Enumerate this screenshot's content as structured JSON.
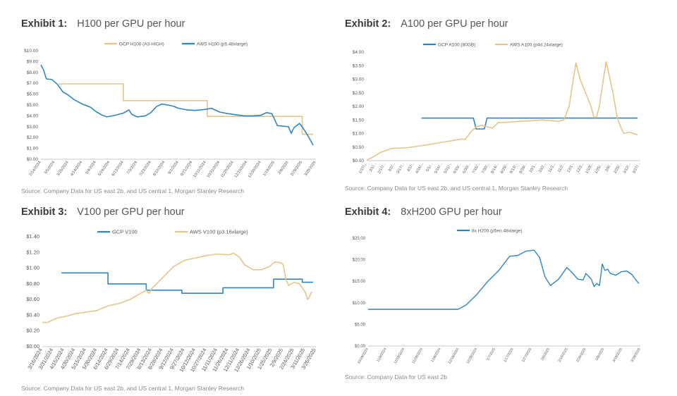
{
  "colors": {
    "blue": "#2E86C1",
    "gold": "#E3C68A",
    "axis": "#bbbbbb",
    "text": "#555555"
  },
  "exhibits": [
    {
      "id": "ex1",
      "number": "Exhibit 1:",
      "title": "H100 per GPU per hour",
      "source": "Source: Company Data for US east 2b, and US central 1, Morgan Stanley Research"
    },
    {
      "id": "ex2",
      "number": "Exhibit 2:",
      "title": "A100 per GPU per hour",
      "source": "Source: Company Data for US east 2b, and US central 1, Morgan Stanley Research"
    },
    {
      "id": "ex3",
      "number": "Exhibit 3:",
      "title": "V100 per GPU per hour",
      "source": "Source: Company Data for US east 2b, and US central 1, Morgan Stanley Research"
    },
    {
      "id": "ex4",
      "number": "Exhibit 4:",
      "title": "8xH200 GPU per hour",
      "source": "Source: Company Data for US east 2b"
    }
  ],
  "chart_data": [
    {
      "id": "ex1",
      "type": "line",
      "title": "H100 per GPU per hour",
      "legend_position": "top",
      "ylim": [
        0,
        10
      ],
      "yticks": [
        "$0.00",
        "$1.00",
        "$2.00",
        "$3.00",
        "$4.00",
        "$5.00",
        "$6.00",
        "$7.00",
        "$8.00",
        "$9.00",
        "$10.00"
      ],
      "yvalues": [
        0,
        1,
        2,
        3,
        4,
        5,
        6,
        7,
        8,
        9,
        10
      ],
      "xlabels": [
        "2/14/2024",
        "3/5/2024",
        "3/25/2024",
        "4/14/2024",
        "5/4/2024",
        "5/24/2024",
        "6/13/2024",
        "7/3/2024",
        "7/23/2024",
        "8/12/2024",
        "9/1/2024",
        "9/21/2024",
        "10/11/2024",
        "10/31/2024",
        "11/20/2024",
        "12/10/2024",
        "12/30/2024",
        "1/19/2025",
        "2/8/2025",
        "2/28/2025",
        "3/20/2025"
      ],
      "series": [
        {
          "name": "GCP H100 (A3-HIGH)",
          "color": "#E3C68A",
          "points": [
            [
              0.065,
              null
            ],
            [
              0.065,
              6.95
            ],
            [
              0.3,
              6.95
            ],
            [
              0.3,
              5.4
            ],
            [
              0.605,
              5.4
            ],
            [
              0.605,
              3.95
            ],
            [
              0.95,
              3.95
            ],
            [
              0.95,
              2.3
            ],
            [
              0.99,
              2.3
            ]
          ]
        },
        {
          "name": "AWS H100 (p5.48xlarge)",
          "color": "#2E86C1",
          "points": [
            [
              0.0,
              8.7
            ],
            [
              0.01,
              8.2
            ],
            [
              0.02,
              7.4
            ],
            [
              0.04,
              7.35
            ],
            [
              0.06,
              6.9
            ],
            [
              0.08,
              6.2
            ],
            [
              0.1,
              5.9
            ],
            [
              0.12,
              5.5
            ],
            [
              0.15,
              5.1
            ],
            [
              0.18,
              4.8
            ],
            [
              0.2,
              4.4
            ],
            [
              0.22,
              4.1
            ],
            [
              0.24,
              3.9
            ],
            [
              0.27,
              4.05
            ],
            [
              0.3,
              4.25
            ],
            [
              0.32,
              4.55
            ],
            [
              0.33,
              4.15
            ],
            [
              0.35,
              3.9
            ],
            [
              0.38,
              4.0
            ],
            [
              0.4,
              4.3
            ],
            [
              0.42,
              4.85
            ],
            [
              0.44,
              5.1
            ],
            [
              0.46,
              5.0
            ],
            [
              0.48,
              4.9
            ],
            [
              0.5,
              4.7
            ],
            [
              0.53,
              4.55
            ],
            [
              0.56,
              4.5
            ],
            [
              0.6,
              4.6
            ],
            [
              0.62,
              4.7
            ],
            [
              0.65,
              4.35
            ],
            [
              0.68,
              4.2
            ],
            [
              0.71,
              4.1
            ],
            [
              0.74,
              4.0
            ],
            [
              0.77,
              4.0
            ],
            [
              0.8,
              4.05
            ],
            [
              0.82,
              4.3
            ],
            [
              0.84,
              4.2
            ],
            [
              0.86,
              3.1
            ],
            [
              0.88,
              3.05
            ],
            [
              0.9,
              3.0
            ],
            [
              0.91,
              2.4
            ],
            [
              0.92,
              2.9
            ],
            [
              0.94,
              3.3
            ],
            [
              0.95,
              3.0
            ],
            [
              0.97,
              2.2
            ],
            [
              0.99,
              1.3
            ]
          ]
        }
      ]
    },
    {
      "id": "ex2",
      "type": "line",
      "title": "A100 per GPU per hour",
      "legend_position": "top",
      "ylim": [
        0,
        4
      ],
      "yticks": [
        "$0.00",
        "$0.50",
        "$1.00",
        "$1.50",
        "$2.00",
        "$2.50",
        "$3.00",
        "$3.50",
        "$4.00"
      ],
      "yvalues": [
        0,
        0.5,
        1,
        1.5,
        2,
        2.5,
        3,
        3.5,
        4
      ],
      "xlabels": [
        "1/17/...",
        "2/1/...",
        "2/17/...",
        "3/2/...",
        "3/17/...",
        "4/1/...",
        "4/16/...",
        "5/1/...",
        "5/16/...",
        "5/31/...",
        "6/15/...",
        "6/30/...",
        "7/15/...",
        "7/30/...",
        "8/14/...",
        "8/29/...",
        "9/13/...",
        "9/28/...",
        "10/1...",
        "10/2...",
        "11/1...",
        "11/2...",
        "12/1...",
        "12/2...",
        "1/10/...",
        "1/25/...",
        "2/9/...",
        "2/25/...",
        "3/12/...",
        "3/27/..."
      ],
      "series": [
        {
          "name": "GCP A100 (80GB)",
          "color": "#2E86C1",
          "points": [
            [
              0.2,
              1.57
            ],
            [
              0.39,
              1.57
            ],
            [
              0.4,
              1.17
            ],
            [
              0.43,
              1.17
            ],
            [
              0.44,
              1.57
            ],
            [
              0.99,
              1.57
            ]
          ]
        },
        {
          "name": "AWS A100 (p4d.24xlarge)",
          "color": "#E3C68A",
          "points": [
            [
              0.0,
              0.02
            ],
            [
              0.02,
              0.12
            ],
            [
              0.05,
              0.3
            ],
            [
              0.09,
              0.45
            ],
            [
              0.15,
              0.48
            ],
            [
              0.2,
              0.55
            ],
            [
              0.26,
              0.65
            ],
            [
              0.32,
              0.75
            ],
            [
              0.35,
              0.8
            ],
            [
              0.36,
              0.78
            ],
            [
              0.38,
              1.05
            ],
            [
              0.4,
              1.25
            ],
            [
              0.42,
              1.3
            ],
            [
              0.44,
              1.25
            ],
            [
              0.46,
              1.2
            ],
            [
              0.48,
              1.4
            ],
            [
              0.52,
              1.42
            ],
            [
              0.56,
              1.45
            ],
            [
              0.6,
              1.47
            ],
            [
              0.64,
              1.5
            ],
            [
              0.68,
              1.47
            ],
            [
              0.7,
              1.45
            ],
            [
              0.72,
              1.5
            ],
            [
              0.74,
              2.0
            ],
            [
              0.755,
              3.0
            ],
            [
              0.765,
              3.6
            ],
            [
              0.78,
              3.0
            ],
            [
              0.8,
              2.5
            ],
            [
              0.82,
              2.0
            ],
            [
              0.83,
              1.6
            ],
            [
              0.84,
              1.6
            ],
            [
              0.85,
              2.0
            ],
            [
              0.865,
              3.0
            ],
            [
              0.875,
              3.65
            ],
            [
              0.885,
              3.2
            ],
            [
              0.9,
              2.5
            ],
            [
              0.915,
              1.6
            ],
            [
              0.93,
              1.2
            ],
            [
              0.94,
              1.0
            ],
            [
              0.96,
              1.05
            ],
            [
              0.99,
              0.95
            ]
          ]
        }
      ]
    },
    {
      "id": "ex3",
      "type": "line",
      "title": "V100 per GPU per hour",
      "legend_position": "top",
      "ylim": [
        0,
        1.4
      ],
      "yticks": [
        "$0.00",
        "$0.20",
        "$0.40",
        "$0.60",
        "$0.80",
        "$1.00",
        "$1.20",
        "$1.40"
      ],
      "yvalues": [
        0,
        0.2,
        0.4,
        0.6,
        0.8,
        1.0,
        1.2,
        1.4
      ],
      "xlabels": [
        "3/16/2024",
        "3/31/2024",
        "4/15/2024",
        "4/30/2024",
        "5/15/2024",
        "5/30/2024",
        "6/14/2024",
        "6/29/2024",
        "7/14/2024",
        "7/29/2024",
        "8/13/2024",
        "8/28/2024",
        "9/12/2024",
        "9/27/2024",
        "10/12/2024",
        "10/27/2024",
        "11/11/2024",
        "11/26/2024",
        "12/11/2024",
        "12/26/2024",
        "1/10/2025",
        "1/25/2025",
        "2/9/2025",
        "2/24/2025",
        "3/11/2025",
        "3/26/2025"
      ],
      "series": [
        {
          "name": "GCP V100",
          "color": "#2E86C1",
          "points": [
            [
              0.07,
              0.94
            ],
            [
              0.24,
              0.94
            ],
            [
              0.24,
              0.8
            ],
            [
              0.38,
              0.8
            ],
            [
              0.38,
              0.72
            ],
            [
              0.51,
              0.72
            ],
            [
              0.51,
              0.68
            ],
            [
              0.66,
              0.68
            ],
            [
              0.66,
              0.75
            ],
            [
              0.845,
              0.75
            ],
            [
              0.845,
              0.86
            ],
            [
              0.95,
              0.86
            ],
            [
              0.95,
              0.82
            ],
            [
              0.99,
              0.82
            ]
          ]
        },
        {
          "name": "AWS V100 (p3.16xlarge)",
          "color": "#E3C68A",
          "points": [
            [
              0.0,
              0.31
            ],
            [
              0.02,
              0.31
            ],
            [
              0.05,
              0.36
            ],
            [
              0.09,
              0.39
            ],
            [
              0.12,
              0.42
            ],
            [
              0.16,
              0.44
            ],
            [
              0.2,
              0.46
            ],
            [
              0.24,
              0.52
            ],
            [
              0.28,
              0.55
            ],
            [
              0.32,
              0.6
            ],
            [
              0.36,
              0.68
            ],
            [
              0.38,
              0.72
            ],
            [
              0.39,
              0.68
            ],
            [
              0.4,
              0.74
            ],
            [
              0.44,
              0.88
            ],
            [
              0.48,
              1.02
            ],
            [
              0.52,
              1.1
            ],
            [
              0.56,
              1.13
            ],
            [
              0.6,
              1.16
            ],
            [
              0.64,
              1.18
            ],
            [
              0.68,
              1.17
            ],
            [
              0.7,
              1.19
            ],
            [
              0.72,
              1.14
            ],
            [
              0.74,
              1.04
            ],
            [
              0.77,
              0.98
            ],
            [
              0.8,
              0.98
            ],
            [
              0.83,
              1.02
            ],
            [
              0.85,
              1.08
            ],
            [
              0.87,
              1.07
            ],
            [
              0.88,
              1.05
            ],
            [
              0.89,
              0.86
            ],
            [
              0.9,
              0.78
            ],
            [
              0.92,
              0.82
            ],
            [
              0.94,
              0.8
            ],
            [
              0.96,
              0.7
            ],
            [
              0.97,
              0.6
            ],
            [
              0.985,
              0.7
            ]
          ]
        }
      ]
    },
    {
      "id": "ex4",
      "type": "line",
      "title": "8xH200 GPU per hour",
      "legend_position": "top",
      "ylim": [
        0,
        25
      ],
      "yticks": [
        "$0.00",
        "$5.00",
        "$10.00",
        "$15.00",
        "$20.00",
        "$25.00"
      ],
      "yvalues": [
        0,
        5,
        10,
        15,
        20,
        25
      ],
      "xlabels": [
        "10/29/2024",
        "11/8/2024",
        "11/18/2024",
        "11/28/2024",
        "12/8/2024",
        "12/18/2024",
        "12/28/2024",
        "1/7/2025",
        "1/17/2025",
        "1/27/2025",
        "2/6/2025",
        "2/16/2025",
        "2/26/2025",
        "3/8/2025",
        "3/18/2025",
        "3/28/2025"
      ],
      "series": [
        {
          "name": "8x H200 (p5en.48xlarge)",
          "color": "#2E86C1",
          "points": [
            [
              0.0,
              8.5
            ],
            [
              0.33,
              8.5
            ],
            [
              0.36,
              9.5
            ],
            [
              0.4,
              12.0
            ],
            [
              0.44,
              15.0
            ],
            [
              0.48,
              17.5
            ],
            [
              0.52,
              20.8
            ],
            [
              0.55,
              21.0
            ],
            [
              0.58,
              22.0
            ],
            [
              0.61,
              22.2
            ],
            [
              0.63,
              20.5
            ],
            [
              0.65,
              16.0
            ],
            [
              0.67,
              14.0
            ],
            [
              0.7,
              15.5
            ],
            [
              0.73,
              18.2
            ],
            [
              0.75,
              17.0
            ],
            [
              0.77,
              15.5
            ],
            [
              0.79,
              15.3
            ],
            [
              0.8,
              16.8
            ],
            [
              0.82,
              15.5
            ],
            [
              0.83,
              13.8
            ],
            [
              0.84,
              14.5
            ],
            [
              0.85,
              14.0
            ],
            [
              0.86,
              19.0
            ],
            [
              0.87,
              17.5
            ],
            [
              0.88,
              17.8
            ],
            [
              0.89,
              16.8
            ],
            [
              0.91,
              16.4
            ],
            [
              0.93,
              17.2
            ],
            [
              0.95,
              17.4
            ],
            [
              0.97,
              16.5
            ],
            [
              0.985,
              15.2
            ],
            [
              0.995,
              14.5
            ]
          ]
        }
      ]
    }
  ]
}
